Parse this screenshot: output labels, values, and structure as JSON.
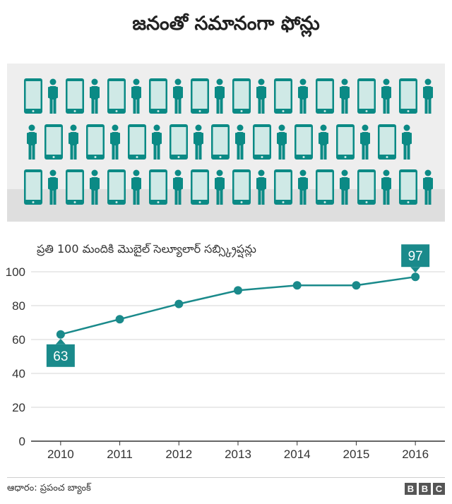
{
  "title": "జనంతో సమానంగా ఫోన్లు",
  "illustration": {
    "icons": [
      "phone-icon",
      "person-icon"
    ],
    "colors": {
      "background": "#eeeeee",
      "floor": "#dedede",
      "teal": "#0b8a85",
      "screen": "#cfe9e6"
    }
  },
  "chart_data": {
    "type": "line",
    "title": "ప్రతి 100 మందికి మొబైల్ సెల్యూలార్ సబ్స్క్రిప్షన్లు",
    "x": [
      2010,
      2011,
      2012,
      2013,
      2014,
      2015,
      2016
    ],
    "series": [
      {
        "values": [
          63,
          72,
          81,
          89,
          92,
          92,
          97
        ]
      }
    ],
    "ylim": [
      0,
      100
    ],
    "yticks": [
      0,
      20,
      40,
      60,
      80,
      100
    ],
    "grid": true,
    "annotations": [
      {
        "x": 2010,
        "label": "63",
        "position": "below"
      },
      {
        "x": 2016,
        "label": "97",
        "position": "above"
      }
    ],
    "color": "#1a8a8b"
  },
  "footer": {
    "source": "ఆధారం: ప్రపంచ బ్యాంక్",
    "logo_letters": [
      "B",
      "B",
      "C"
    ]
  }
}
